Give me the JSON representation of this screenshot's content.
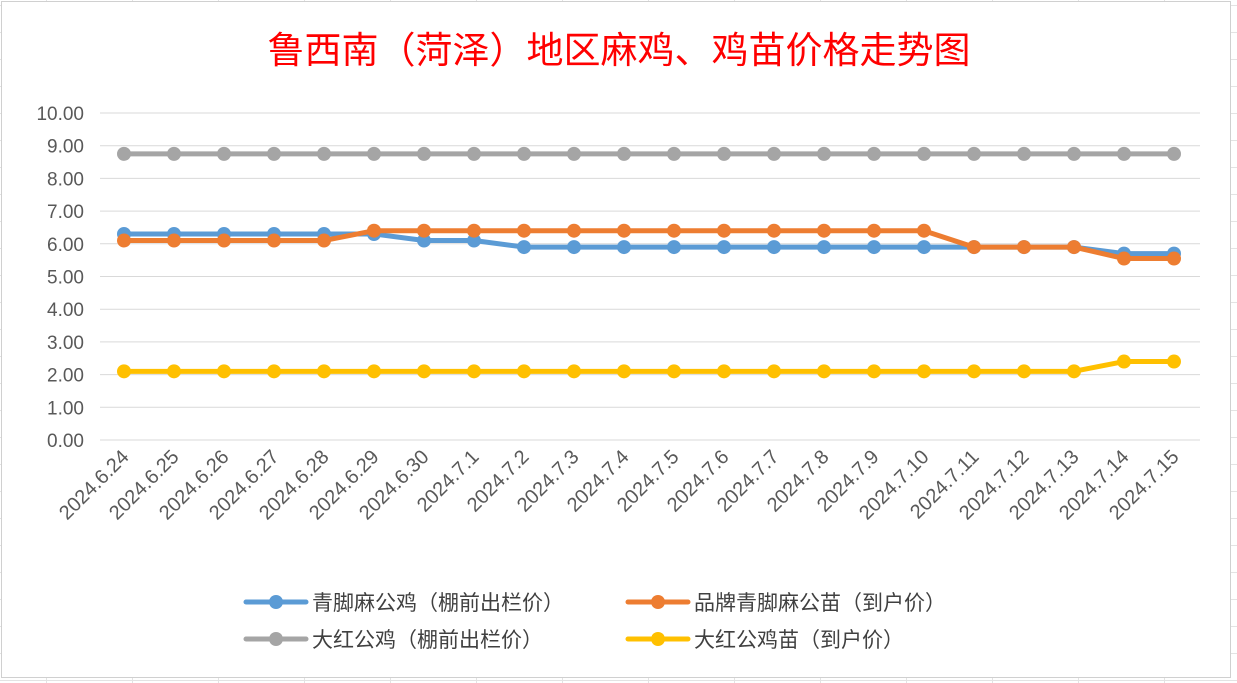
{
  "chart_data": {
    "type": "line",
    "title": "鲁西南（菏泽）地区麻鸡、鸡苗价格走势图",
    "xlabel": "",
    "ylabel": "",
    "ylim": [
      0,
      10
    ],
    "yticks": [
      "0.00",
      "1.00",
      "2.00",
      "3.00",
      "4.00",
      "5.00",
      "6.00",
      "7.00",
      "8.00",
      "9.00",
      "10.00"
    ],
    "grid": true,
    "legend_position": "bottom",
    "categories": [
      "2024.6.24",
      "2024.6.25",
      "2024.6.26",
      "2024.6.27",
      "2024.6.28",
      "2024.6.29",
      "2024.6.30",
      "2024.7.1",
      "2024.7.2",
      "2024.7.3",
      "2024.7.4",
      "2024.7.5",
      "2024.7.6",
      "2024.7.7",
      "2024.7.8",
      "2024.7.9",
      "2024.7.10",
      "2024.7.11",
      "2024.7.12",
      "2024.7.13",
      "2024.7.14",
      "2024.7.15"
    ],
    "series": [
      {
        "name": "青脚麻公鸡（棚前出栏价）",
        "color": "#5b9bd5",
        "values": [
          6.3,
          6.3,
          6.3,
          6.3,
          6.3,
          6.3,
          6.1,
          6.1,
          5.9,
          5.9,
          5.9,
          5.9,
          5.9,
          5.9,
          5.9,
          5.9,
          5.9,
          5.9,
          5.9,
          5.9,
          5.7,
          5.7
        ]
      },
      {
        "name": "品牌青脚麻公苗（到户价）",
        "color": "#ed7d31",
        "values": [
          6.1,
          6.1,
          6.1,
          6.1,
          6.1,
          6.4,
          6.4,
          6.4,
          6.4,
          6.4,
          6.4,
          6.4,
          6.4,
          6.4,
          6.4,
          6.4,
          6.4,
          5.9,
          5.9,
          5.9,
          5.55,
          5.55
        ]
      },
      {
        "name": "大红公鸡（棚前出栏价）",
        "color": "#a5a5a5",
        "values": [
          8.75,
          8.75,
          8.75,
          8.75,
          8.75,
          8.75,
          8.75,
          8.75,
          8.75,
          8.75,
          8.75,
          8.75,
          8.75,
          8.75,
          8.75,
          8.75,
          8.75,
          8.75,
          8.75,
          8.75,
          8.75,
          8.75
        ]
      },
      {
        "name": "大红公鸡苗（到户价）",
        "color": "#ffc000",
        "values": [
          2.1,
          2.1,
          2.1,
          2.1,
          2.1,
          2.1,
          2.1,
          2.1,
          2.1,
          2.1,
          2.1,
          2.1,
          2.1,
          2.1,
          2.1,
          2.1,
          2.1,
          2.1,
          2.1,
          2.1,
          2.4,
          2.4
        ]
      }
    ]
  }
}
